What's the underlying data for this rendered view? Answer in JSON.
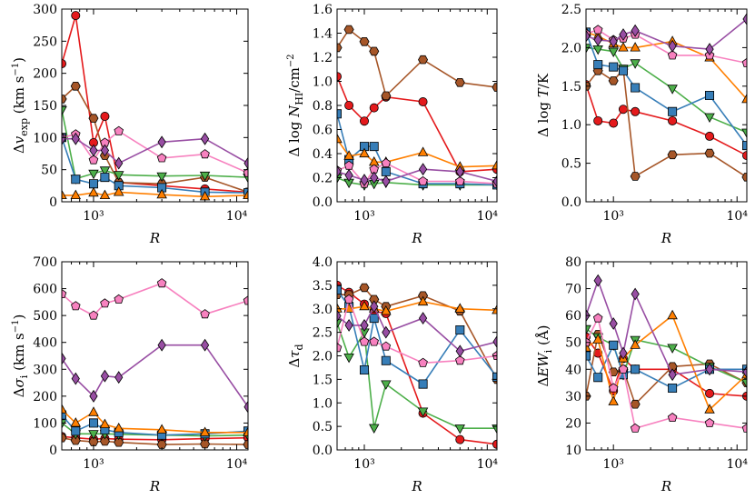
{
  "figure": {
    "xlabel": "R"
  },
  "series_styles": [
    {
      "name": "red-circle",
      "color": "#e41a1c",
      "marker": "circle"
    },
    {
      "name": "brown-hexagon",
      "color": "#a65628",
      "marker": "hexagon"
    },
    {
      "name": "green-triangle-down",
      "color": "#4daf4a",
      "marker": "triangle-down"
    },
    {
      "name": "blue-square",
      "color": "#377eb8",
      "marker": "square"
    },
    {
      "name": "orange-triangle-up",
      "color": "#ff7f00",
      "marker": "triangle-up"
    },
    {
      "name": "pink-pentagon",
      "color": "#f781bf",
      "marker": "pentagon"
    },
    {
      "name": "purple-diamond",
      "color": "#984ea3",
      "marker": "diamond"
    }
  ],
  "chart_data": [
    {
      "type": "line",
      "id": "vexp",
      "ylabel_main": "Δ",
      "ylabel_var": "v",
      "ylabel_sub": "exp",
      "ylabel_unit": " (km s",
      "xlabel": "R",
      "xlim": [
        600,
        12000
      ],
      "ylim": [
        0,
        300
      ],
      "yticks": [
        "0",
        "50",
        "100",
        "150",
        "200",
        "250",
        "300"
      ],
      "ytick_values": [
        0,
        50,
        100,
        150,
        200,
        250,
        300
      ],
      "xtick_labels": [
        "10³",
        "10⁴"
      ],
      "x": [
        600,
        750,
        1000,
        1200,
        1500,
        3000,
        6000,
        12000
      ],
      "series": [
        {
          "name": "red-circle",
          "values": [
            215,
            290,
            92,
            133,
            30,
            25,
            20,
            15
          ]
        },
        {
          "name": "brown-hexagon",
          "values": [
            160,
            180,
            130,
            72,
            30,
            28,
            38,
            15
          ]
        },
        {
          "name": "green-triangle-down",
          "values": [
            143,
            36,
            44,
            49,
            42,
            40,
            41,
            38
          ]
        },
        {
          "name": "blue-square",
          "values": [
            100,
            35,
            28,
            38,
            25,
            22,
            15,
            14
          ]
        },
        {
          "name": "orange-triangle-up",
          "values": [
            10,
            10,
            14,
            10,
            15,
            11,
            8,
            10
          ]
        },
        {
          "name": "pink-pentagon",
          "values": [
            100,
            105,
            65,
            92,
            110,
            68,
            74,
            45
          ]
        },
        {
          "name": "purple-diamond",
          "values": [
            98,
            98,
            80,
            80,
            60,
            93,
            98,
            60
          ]
        }
      ]
    },
    {
      "type": "line",
      "id": "nhi",
      "ylabel_main": "Δ log ",
      "ylabel_var": "N",
      "ylabel_sub": "HI",
      "ylabel_unit": "/cm",
      "xlabel": "R",
      "xlim": [
        600,
        12000
      ],
      "ylim": [
        0,
        1.6
      ],
      "yticks": [
        "0.0",
        "0.2",
        "0.4",
        "0.6",
        "0.8",
        "1.0",
        "1.2",
        "1.4",
        "1.6"
      ],
      "ytick_values": [
        0,
        0.2,
        0.4,
        0.6,
        0.8,
        1.0,
        1.2,
        1.4,
        1.6
      ],
      "xtick_labels": [
        "10³",
        "10⁴"
      ],
      "x": [
        600,
        750,
        1000,
        1200,
        1500,
        3000,
        6000,
        12000
      ],
      "series": [
        {
          "name": "red-circle",
          "values": [
            1.04,
            0.8,
            0.67,
            0.78,
            0.87,
            0.83,
            0.25,
            0.27
          ]
        },
        {
          "name": "brown-hexagon",
          "values": [
            1.28,
            1.43,
            1.33,
            1.25,
            0.88,
            1.18,
            0.99,
            0.95
          ]
        },
        {
          "name": "green-triangle-down",
          "values": [
            0.2,
            0.16,
            0.14,
            0.15,
            0.16,
            0.14,
            0.14,
            0.14
          ]
        },
        {
          "name": "blue-square",
          "values": [
            0.73,
            0.35,
            0.46,
            0.46,
            0.25,
            0.15,
            0.15,
            0.14
          ]
        },
        {
          "name": "orange-triangle-up",
          "values": [
            0.52,
            0.38,
            0.4,
            0.33,
            0.33,
            0.41,
            0.29,
            0.3
          ]
        },
        {
          "name": "pink-pentagon",
          "values": [
            0.26,
            0.3,
            0.15,
            0.27,
            0.32,
            0.17,
            0.17,
            0.15
          ]
        },
        {
          "name": "purple-diamond",
          "values": [
            0.25,
            0.22,
            0.18,
            0.2,
            0.17,
            0.27,
            0.25,
            0.17
          ]
        }
      ]
    },
    {
      "type": "line",
      "id": "logT",
      "ylabel_main": "Δ log ",
      "ylabel_var": "T",
      "ylabel_sub": "",
      "ylabel_unit": "/K",
      "xlabel": "R",
      "xlim": [
        600,
        12000
      ],
      "ylim": [
        0,
        2.5
      ],
      "yticks": [
        "0.0",
        "0.5",
        "1.0",
        "1.5",
        "2.0",
        "2.5"
      ],
      "ytick_values": [
        0,
        0.5,
        1.0,
        1.5,
        2.0,
        2.5
      ],
      "xtick_labels": [
        "10³",
        "10⁴"
      ],
      "x": [
        600,
        750,
        1000,
        1200,
        1500,
        3000,
        6000,
        12000
      ],
      "series": [
        {
          "name": "red-circle",
          "values": [
            1.52,
            1.05,
            1.02,
            1.2,
            1.17,
            1.05,
            0.85,
            0.6
          ]
        },
        {
          "name": "brown-hexagon",
          "values": [
            1.5,
            1.7,
            1.57,
            1.72,
            0.33,
            0.61,
            0.63,
            0.32
          ]
        },
        {
          "name": "green-triangle-down",
          "values": [
            2.0,
            1.98,
            1.95,
            1.73,
            1.8,
            1.47,
            1.1,
            0.9
          ]
        },
        {
          "name": "blue-square",
          "values": [
            2.2,
            1.78,
            1.75,
            1.7,
            1.48,
            1.17,
            1.38,
            0.73
          ]
        },
        {
          "name": "orange-triangle-up",
          "values": [
            2.2,
            2.15,
            2.05,
            2.0,
            2.0,
            2.08,
            1.87,
            1.33
          ]
        },
        {
          "name": "pink-pentagon",
          "values": [
            2.18,
            2.23,
            2.1,
            2.12,
            2.17,
            1.9,
            1.9,
            1.8
          ]
        },
        {
          "name": "purple-diamond",
          "values": [
            2.15,
            2.1,
            2.08,
            2.17,
            2.22,
            2.02,
            1.98,
            2.37
          ]
        }
      ]
    },
    {
      "type": "line",
      "id": "sigma",
      "ylabel_main": "Δ",
      "ylabel_var": "σ",
      "ylabel_sub": "i",
      "ylabel_unit": " (km s",
      "xlabel": "R",
      "xlim": [
        600,
        12000
      ],
      "ylim": [
        0,
        700
      ],
      "yticks": [
        "0",
        "100",
        "200",
        "300",
        "400",
        "500",
        "600",
        "700"
      ],
      "ytick_values": [
        0,
        100,
        200,
        300,
        400,
        500,
        600,
        700
      ],
      "xtick_labels": [
        "10³",
        "10⁴"
      ],
      "x": [
        600,
        750,
        1000,
        1200,
        1500,
        3000,
        6000,
        12000
      ],
      "series": [
        {
          "name": "red-circle",
          "values": [
            50,
            45,
            40,
            42,
            40,
            38,
            42,
            45
          ]
        },
        {
          "name": "brown-hexagon",
          "values": [
            45,
            35,
            30,
            32,
            28,
            20,
            22,
            20
          ]
        },
        {
          "name": "green-triangle-down",
          "values": [
            100,
            60,
            60,
            60,
            58,
            55,
            52,
            55
          ]
        },
        {
          "name": "blue-square",
          "values": [
            130,
            70,
            100,
            75,
            65,
            55,
            60,
            70
          ]
        },
        {
          "name": "orange-triangle-up",
          "values": [
            150,
            100,
            140,
            95,
            80,
            75,
            65,
            65
          ]
        },
        {
          "name": "pink-pentagon",
          "values": [
            580,
            535,
            500,
            545,
            560,
            620,
            505,
            555
          ]
        },
        {
          "name": "purple-diamond",
          "values": [
            340,
            265,
            200,
            275,
            270,
            390,
            390,
            160
          ]
        }
      ]
    },
    {
      "type": "line",
      "id": "taud",
      "ylabel_main": "Δ",
      "ylabel_var": "τ",
      "ylabel_sub": "d",
      "ylabel_unit": "",
      "xlabel": "R",
      "xlim": [
        600,
        12000
      ],
      "ylim": [
        0,
        4.0
      ],
      "yticks": [
        "0.0",
        "0.5",
        "1.0",
        "1.5",
        "2.0",
        "2.5",
        "3.0",
        "3.5",
        "4.0"
      ],
      "ytick_values": [
        0,
        0.5,
        1.0,
        1.5,
        2.0,
        2.5,
        3.0,
        3.5,
        4.0
      ],
      "xtick_labels": [
        "10³",
        "10⁴"
      ],
      "x": [
        600,
        750,
        1000,
        1200,
        1500,
        3000,
        6000,
        12000
      ],
      "series": [
        {
          "name": "red-circle",
          "values": [
            3.5,
            3.35,
            3.1,
            2.95,
            2.9,
            0.78,
            0.22,
            0.12
          ]
        },
        {
          "name": "brown-hexagon",
          "values": [
            3.3,
            3.3,
            3.45,
            3.2,
            3.05,
            3.28,
            2.95,
            1.5
          ]
        },
        {
          "name": "green-triangle-down",
          "values": [
            2.7,
            1.97,
            2.5,
            0.47,
            1.4,
            0.82,
            0.46,
            0.46
          ]
        },
        {
          "name": "blue-square",
          "values": [
            3.4,
            3.05,
            1.7,
            2.8,
            1.9,
            1.4,
            2.55,
            1.55
          ]
        },
        {
          "name": "orange-triangle-up",
          "values": [
            3.0,
            3.0,
            3.05,
            3.0,
            2.95,
            3.15,
            3.0,
            2.97
          ]
        },
        {
          "name": "pink-pentagon",
          "values": [
            2.17,
            3.2,
            2.3,
            2.3,
            2.2,
            1.85,
            1.9,
            2.0
          ]
        },
        {
          "name": "purple-diamond",
          "values": [
            2.85,
            2.65,
            2.65,
            3.05,
            2.5,
            2.8,
            2.1,
            2.3
          ]
        }
      ]
    },
    {
      "type": "line",
      "id": "ew",
      "ylabel_main": "Δ",
      "ylabel_var": "EW",
      "ylabel_sub": "i",
      "ylabel_unit": " (Å)",
      "xlabel": "R",
      "xlim": [
        600,
        12000
      ],
      "ylim": [
        10,
        80
      ],
      "yticks": [
        "10",
        "20",
        "30",
        "40",
        "50",
        "60",
        "70",
        "80"
      ],
      "ytick_values": [
        10,
        20,
        30,
        40,
        50,
        60,
        70,
        80
      ],
      "xtick_labels": [
        "10³",
        "10⁴"
      ],
      "x": [
        600,
        750,
        1000,
        1200,
        1500,
        3000,
        6000,
        12000
      ],
      "series": [
        {
          "name": "red-circle",
          "values": [
            52,
            46,
            32,
            44,
            40,
            40,
            31,
            30
          ]
        },
        {
          "name": "brown-hexagon",
          "values": [
            30,
            53,
            39,
            40,
            27,
            41,
            42,
            35
          ]
        },
        {
          "name": "green-triangle-down",
          "values": [
            55,
            52,
            49,
            38,
            51,
            48,
            41,
            35
          ]
        },
        {
          "name": "blue-square",
          "values": [
            45,
            37,
            49,
            38,
            40,
            33,
            40,
            40
          ]
        },
        {
          "name": "orange-triangle-up",
          "values": [
            48,
            51,
            28,
            44,
            49,
            60,
            25,
            38
          ]
        },
        {
          "name": "pink-pentagon",
          "values": [
            50,
            59,
            33,
            40,
            18,
            22,
            20,
            18
          ]
        },
        {
          "name": "purple-diamond",
          "values": [
            60,
            73,
            57,
            46,
            68,
            38,
            40,
            39
          ]
        }
      ]
    }
  ]
}
